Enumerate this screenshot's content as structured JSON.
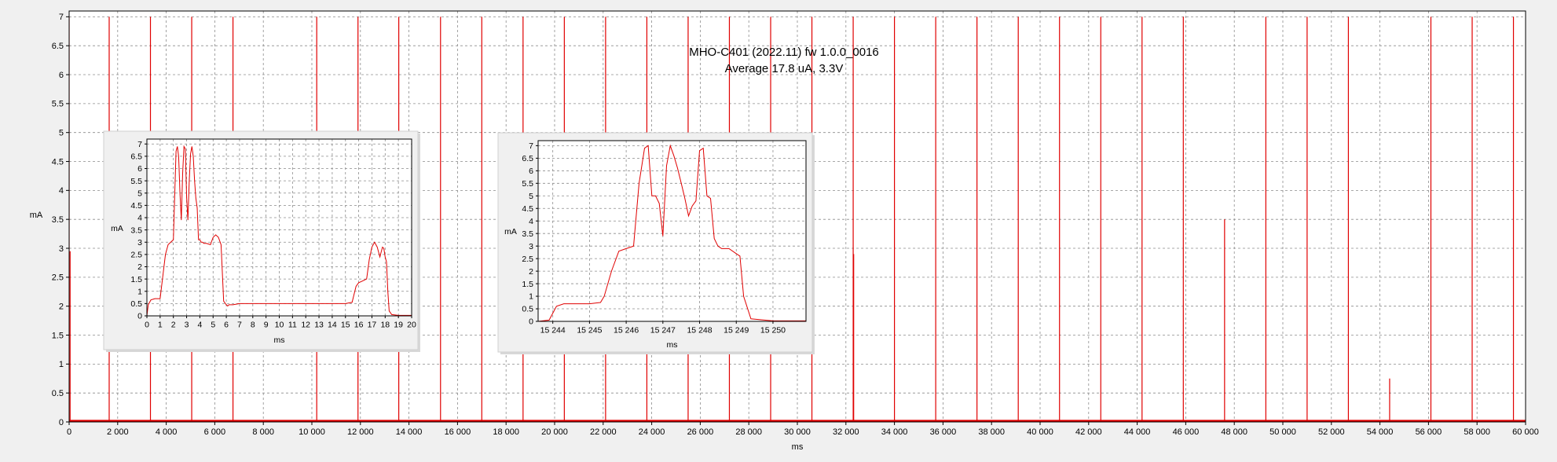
{
  "chart_data": [
    {
      "id": "main",
      "type": "line",
      "title": "MHO-C401 (2022.11) fw 1.0.0_0016",
      "subtitle": "Average 17.8 uA, 3.3V",
      "xlabel": "ms",
      "ylabel": "mA",
      "xlim": [
        0,
        60000
      ],
      "ylim": [
        0,
        7.1
      ],
      "grid": true,
      "x_ticks": [
        0,
        2000,
        4000,
        6000,
        8000,
        10000,
        12000,
        14000,
        16000,
        18000,
        20000,
        22000,
        24000,
        26000,
        28000,
        30000,
        32000,
        34000,
        36000,
        38000,
        40000,
        42000,
        44000,
        46000,
        48000,
        50000,
        52000,
        54000,
        56000,
        58000,
        60000
      ],
      "x_tick_labels": [
        "0",
        "2 000",
        "4 000",
        "6 000",
        "8 000",
        "10 000",
        "12 000",
        "14 000",
        "16 000",
        "18 000",
        "20 000",
        "22 000",
        "24 000",
        "26 000",
        "28 000",
        "30 000",
        "32 000",
        "34 000",
        "36 000",
        "38 000",
        "40 000",
        "42 000",
        "44 000",
        "46 000",
        "48 000",
        "50 000",
        "52 000",
        "54 000",
        "56 000",
        "58 000",
        "60 000"
      ],
      "y_ticks": [
        0,
        0.5,
        1,
        1.5,
        2,
        2.5,
        3,
        3.5,
        4,
        4.5,
        5,
        5.5,
        6,
        6.5,
        7
      ],
      "y_tick_labels": [
        "0",
        "0.5",
        "1",
        "1.5",
        "2",
        "2.5",
        "3",
        "3.5",
        "4",
        "4.5",
        "5",
        "5.5",
        "6",
        "6.5",
        "7"
      ],
      "baseline": 0.02,
      "series": [
        {
          "color": "#e00000",
          "spikes": [
            {
              "x": 0,
              "y": 7.0
            },
            {
              "x": 40,
              "y": 2.95
            },
            {
              "x": 1650,
              "y": 7.0
            },
            {
              "x": 3350,
              "y": 7.0
            },
            {
              "x": 5050,
              "y": 7.0
            },
            {
              "x": 6750,
              "y": 7.0
            },
            {
              "x": 10200,
              "y": 7.0
            },
            {
              "x": 11900,
              "y": 7.0
            },
            {
              "x": 13580,
              "y": 7.0
            },
            {
              "x": 15300,
              "y": 7.0
            },
            {
              "x": 17000,
              "y": 7.0
            },
            {
              "x": 18700,
              "y": 7.0
            },
            {
              "x": 20400,
              "y": 7.0
            },
            {
              "x": 22100,
              "y": 7.0
            },
            {
              "x": 23800,
              "y": 7.0
            },
            {
              "x": 25500,
              "y": 7.0
            },
            {
              "x": 27200,
              "y": 7.0
            },
            {
              "x": 28900,
              "y": 7.0
            },
            {
              "x": 30600,
              "y": 7.0
            },
            {
              "x": 32300,
              "y": 7.0
            },
            {
              "x": 32320,
              "y": 2.9
            },
            {
              "x": 34000,
              "y": 7.0
            },
            {
              "x": 35700,
              "y": 7.0
            },
            {
              "x": 37400,
              "y": 7.0
            },
            {
              "x": 39100,
              "y": 7.0
            },
            {
              "x": 40800,
              "y": 7.0
            },
            {
              "x": 42500,
              "y": 7.0
            },
            {
              "x": 44200,
              "y": 7.0
            },
            {
              "x": 45900,
              "y": 7.0
            },
            {
              "x": 47600,
              "y": 3.5
            },
            {
              "x": 49300,
              "y": 7.0
            },
            {
              "x": 51000,
              "y": 7.0
            },
            {
              "x": 52700,
              "y": 7.0
            },
            {
              "x": 54400,
              "y": 0.75
            },
            {
              "x": 56100,
              "y": 7.0
            },
            {
              "x": 57800,
              "y": 7.0
            },
            {
              "x": 59500,
              "y": 7.0
            }
          ]
        }
      ]
    },
    {
      "id": "inset1",
      "type": "line",
      "xlabel": "ms",
      "ylabel": "mA",
      "xlim": [
        0,
        20
      ],
      "ylim": [
        0,
        7.2
      ],
      "grid": true,
      "x_ticks": [
        0,
        1,
        2,
        3,
        4,
        5,
        6,
        7,
        8,
        9,
        10,
        11,
        12,
        13,
        14,
        15,
        16,
        17,
        18,
        19,
        20
      ],
      "x_tick_labels": [
        "0",
        "1",
        "2",
        "3",
        "4",
        "5",
        "6",
        "7",
        "8",
        "9",
        "10",
        "11",
        "12",
        "13",
        "14",
        "15",
        "16",
        "17",
        "18",
        "19",
        "20"
      ],
      "y_ticks": [
        0,
        0.5,
        1,
        1.5,
        2,
        2.5,
        3,
        3.5,
        4,
        4.5,
        5,
        5.5,
        6,
        6.5,
        7
      ],
      "y_tick_labels": [
        "0",
        "0.5",
        "1",
        "1.5",
        "2",
        "2.5",
        "3",
        "3.5",
        "4",
        "4.5",
        "5",
        "5.5",
        "6",
        "6.5",
        "7"
      ],
      "series": [
        {
          "color": "#e00000",
          "x": [
            0,
            0.1,
            0.3,
            0.6,
            1.0,
            1.2,
            1.4,
            1.6,
            1.8,
            2.0,
            2.2,
            2.3,
            2.4,
            2.5,
            2.6,
            2.7,
            2.8,
            2.9,
            3.0,
            3.1,
            3.2,
            3.3,
            3.4,
            3.5,
            3.6,
            3.7,
            3.8,
            3.9,
            4.0,
            4.1,
            4.2,
            4.3,
            4.5,
            4.8,
            5.0,
            5.2,
            5.4,
            5.6,
            5.8,
            6.0,
            6.1,
            6.2,
            6.5,
            7.0,
            8.0,
            9.0,
            10.0,
            11.0,
            12.0,
            13.0,
            14.0,
            15.0,
            15.5,
            15.8,
            16.0,
            16.2,
            16.4,
            16.6,
            16.8,
            17.0,
            17.2,
            17.4,
            17.5,
            17.6,
            17.7,
            17.8,
            17.9,
            18.0,
            18.1,
            18.2,
            18.3,
            18.5,
            19.0,
            19.5,
            20.0
          ],
          "values": [
            0,
            0.45,
            0.65,
            0.7,
            0.7,
            1.6,
            2.5,
            2.9,
            3.0,
            3.1,
            6.7,
            6.9,
            6.5,
            5.0,
            3.9,
            5.8,
            6.9,
            6.8,
            4.8,
            3.9,
            5.5,
            6.6,
            6.9,
            6.5,
            5.5,
            4.8,
            4.4,
            3.1,
            3.1,
            3.0,
            3.0,
            2.95,
            2.95,
            2.9,
            3.2,
            3.3,
            3.2,
            2.9,
            0.6,
            0.45,
            0.4,
            0.45,
            0.45,
            0.5,
            0.5,
            0.5,
            0.5,
            0.5,
            0.5,
            0.5,
            0.5,
            0.5,
            0.55,
            1.2,
            1.35,
            1.4,
            1.45,
            1.5,
            2.3,
            2.8,
            3.0,
            2.8,
            2.6,
            2.4,
            2.6,
            2.8,
            2.75,
            2.4,
            2.2,
            1.0,
            0.2,
            0.05,
            0.02,
            0.02,
            0.02
          ]
        }
      ]
    },
    {
      "id": "inset2",
      "type": "line",
      "xlabel": "ms",
      "ylabel": "mA",
      "xlim": [
        15243.6,
        15250.9
      ],
      "ylim": [
        0,
        7.2
      ],
      "grid": true,
      "x_ticks": [
        15244,
        15245,
        15246,
        15247,
        15248,
        15249,
        15250
      ],
      "x_tick_labels": [
        "15 244",
        "15 245",
        "15 246",
        "15 247",
        "15 248",
        "15 249",
        "15 250"
      ],
      "y_ticks": [
        0,
        0.5,
        1,
        1.5,
        2,
        2.5,
        3,
        3.5,
        4,
        4.5,
        5,
        5.5,
        6,
        6.5,
        7
      ],
      "y_tick_labels": [
        "0",
        "0.5",
        "1",
        "1.5",
        "2",
        "2.5",
        "3",
        "3.5",
        "4",
        "4.5",
        "5",
        "5.5",
        "6",
        "6.5",
        "7"
      ],
      "series": [
        {
          "color": "#e00000",
          "x": [
            15243.6,
            15243.9,
            15244.1,
            15244.3,
            15244.6,
            15245.0,
            15245.3,
            15245.4,
            15245.6,
            15245.8,
            15246.0,
            15246.2,
            15246.35,
            15246.5,
            15246.6,
            15246.7,
            15246.8,
            15246.9,
            15247.0,
            15247.1,
            15247.2,
            15247.3,
            15247.4,
            15247.5,
            15247.6,
            15247.7,
            15247.8,
            15247.9,
            15248.0,
            15248.1,
            15248.2,
            15248.3,
            15248.4,
            15248.5,
            15248.6,
            15248.8,
            15249.0,
            15249.1,
            15249.2,
            15249.4,
            15250.0,
            15250.9
          ],
          "values": [
            0,
            0.05,
            0.6,
            0.7,
            0.7,
            0.7,
            0.75,
            1.0,
            2.0,
            2.8,
            2.9,
            3.0,
            5.5,
            6.9,
            7.0,
            5.0,
            5.0,
            4.7,
            3.4,
            6.2,
            7.0,
            6.6,
            6.1,
            5.5,
            4.9,
            4.2,
            4.6,
            4.8,
            6.8,
            6.9,
            5.0,
            4.9,
            3.3,
            3.0,
            2.9,
            2.9,
            2.7,
            2.6,
            1.0,
            0.1,
            0.02,
            0.02
          ]
        }
      ]
    }
  ]
}
